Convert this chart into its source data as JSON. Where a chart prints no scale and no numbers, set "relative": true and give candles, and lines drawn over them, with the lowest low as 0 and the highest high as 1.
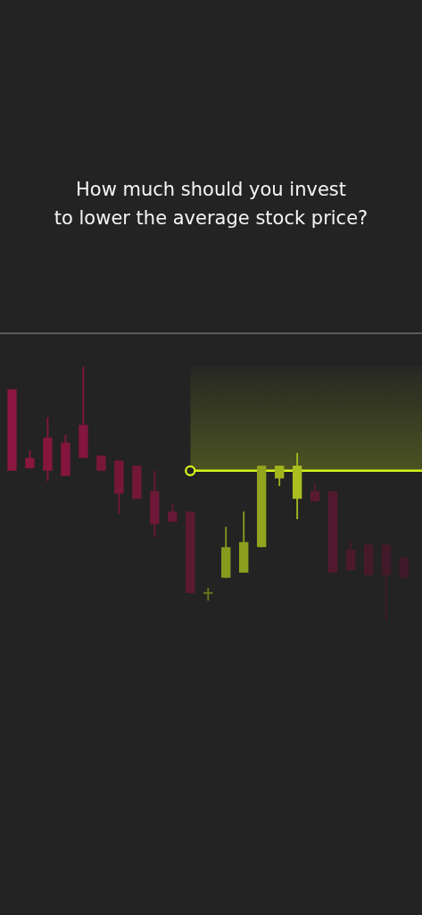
{
  "chart_data": {
    "type": "candlestick",
    "title": "How much should you invest\nto lower the average stock price?",
    "relative": true,
    "categories": [
      null,
      null,
      null,
      null,
      null,
      null,
      null,
      null,
      null,
      null,
      null,
      null,
      null,
      null,
      null,
      null,
      null,
      null,
      null,
      null,
      null,
      null,
      null,
      null
    ],
    "ohlc": [
      [
        0.91,
        0.91,
        0.59,
        0.59
      ],
      [
        0.64,
        0.67,
        0.6,
        0.6
      ],
      [
        0.72,
        0.8,
        0.55,
        0.59
      ],
      [
        0.7,
        0.73,
        0.57,
        0.57
      ],
      [
        0.77,
        1,
        0.64,
        0.64
      ],
      [
        0.65,
        0.65,
        0.59,
        0.59
      ],
      [
        0.63,
        0.63,
        0.42,
        0.5
      ],
      [
        0.61,
        0.61,
        0.48,
        0.48
      ],
      [
        0.51,
        0.59,
        0.33,
        0.38
      ],
      [
        0.43,
        0.46,
        0.39,
        0.39
      ],
      [
        0.43,
        0.43,
        0.11,
        0.11
      ],
      [
        0.11,
        0.13,
        0.08,
        0.11
      ],
      [
        0.17,
        0.37,
        0.17,
        0.29
      ],
      [
        0.19,
        0.43,
        0.19,
        0.31
      ],
      [
        0.29,
        0.61,
        0.29,
        0.61
      ],
      [
        0.56,
        0.61,
        0.53,
        0.61
      ],
      [
        0.48,
        0.66,
        0.4,
        0.61
      ],
      [
        0.51,
        0.54,
        0.47,
        0.47
      ],
      [
        0.51,
        0.51,
        0.19,
        0.19
      ],
      [
        0.28,
        0.31,
        0.2,
        0.2
      ],
      [
        0.3,
        0.3,
        0.18,
        0.18
      ],
      [
        0.3,
        0.3,
        0,
        0.18
      ],
      [
        0.25,
        0.25,
        0.17,
        0.17
      ],
      null
    ],
    "colors": [
      "#8c1740",
      "#88163e",
      "#86163e",
      "#84163e",
      "#82163d",
      "#7a1739",
      "#76173a",
      "#721738",
      "#6c1836",
      "#661834",
      "#5a1a31",
      "#6e7a1e",
      "#889a1e",
      "#8c9e1e",
      "#93a51e",
      "#a2b41e",
      "#aabe20",
      "#591a31",
      "#531a2f",
      "#4c1a2c",
      "#471a2a",
      "#421a29",
      "#3f1a28",
      null
    ],
    "series": [
      {
        "type": "area",
        "color": "#4b5322",
        "values": [
          null,
          null,
          null,
          null,
          null,
          null,
          null,
          null,
          null,
          null,
          1,
          1,
          1,
          1,
          1,
          1,
          1,
          1,
          1,
          1,
          1,
          1,
          1,
          1
        ]
      },
      {
        "type": "line",
        "color": "#d6f31c",
        "values": [
          null,
          null,
          null,
          null,
          null,
          null,
          null,
          null,
          null,
          null,
          0.59,
          0.59,
          0.59,
          0.59,
          0.59,
          0.59,
          0.59,
          0.59,
          0.59,
          0.59,
          0.59,
          0.59,
          0.59,
          0.59
        ]
      },
      {
        "type": "scatter",
        "color": "#d6f31c",
        "marker": "circle",
        "values": [
          null,
          null,
          null,
          null,
          null,
          null,
          null,
          null,
          null,
          null,
          0.59,
          null,
          null,
          null,
          null,
          null,
          null,
          null,
          null,
          null,
          null,
          null,
          null,
          null
        ]
      }
    ]
  }
}
